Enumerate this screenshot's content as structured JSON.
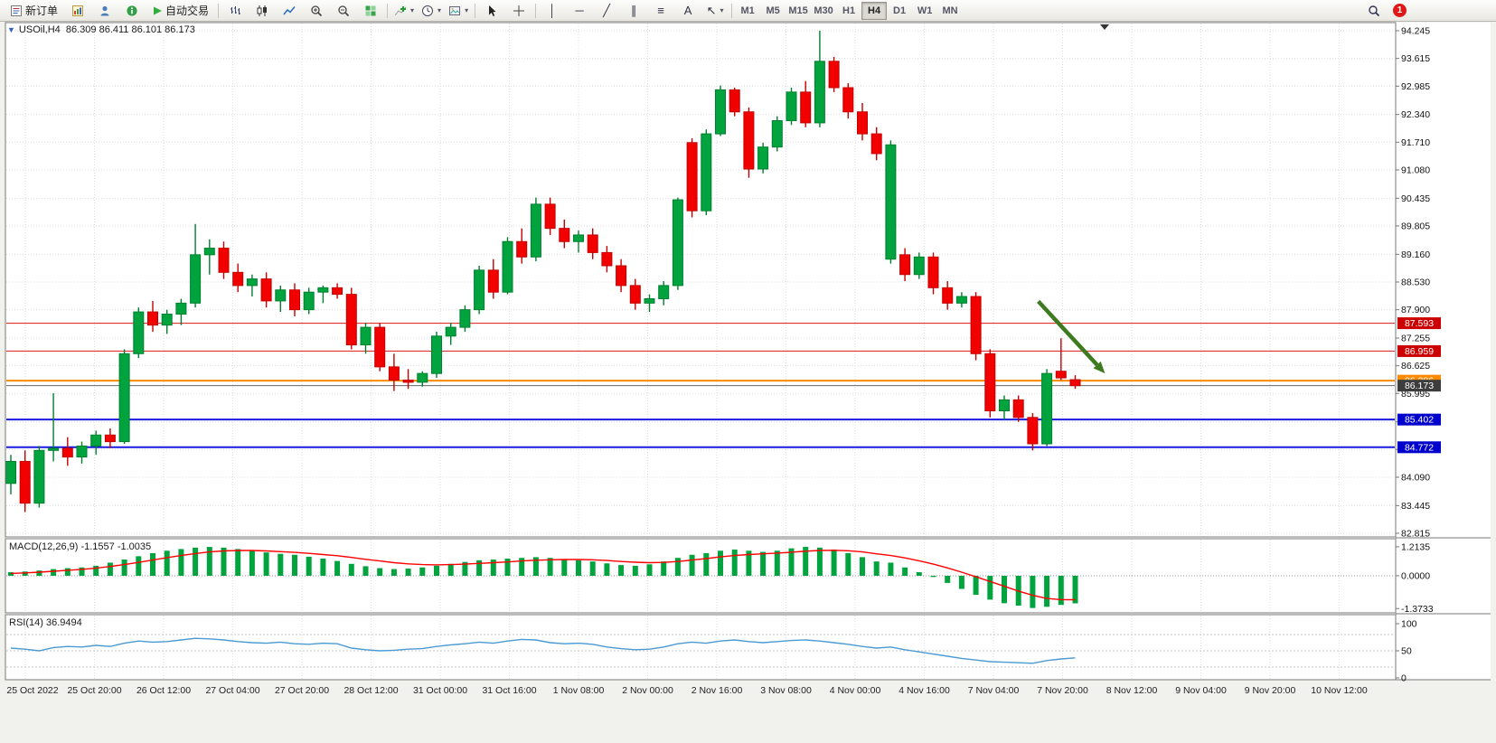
{
  "toolbar": {
    "new_order_label": "新订单",
    "autotrade_label": "自动交易",
    "timeframes": [
      "M1",
      "M5",
      "M15",
      "M30",
      "H1",
      "H4",
      "D1",
      "W1",
      "MN"
    ],
    "active_timeframe": "H4",
    "notification_count": "1",
    "caret_glyph": "▾",
    "tool_glyphs": [
      "│",
      "─",
      "╱",
      "∥",
      "≡",
      "A",
      "↖"
    ]
  },
  "chart": {
    "collapse_glyph": "▼",
    "title_symbol": "USOil,H4",
    "title_ohlc": "86.309 86.411 86.101 86.173"
  },
  "chart_data": {
    "type": "candlestick",
    "symbol": "USOil",
    "period": "H4",
    "last_ohlc": {
      "open": 86.309,
      "high": 86.411,
      "low": 86.101,
      "close": 86.173
    },
    "price_axis_ticks": [
      "94.245",
      "93.615",
      "92.985",
      "92.340",
      "91.710",
      "91.080",
      "90.435",
      "89.805",
      "89.160",
      "88.530",
      "87.900",
      "87.255",
      "86.625",
      "85.995",
      "85.350",
      "84.720",
      "84.090",
      "83.445",
      "82.815"
    ],
    "time_axis_labels": [
      "25 Oct 2022",
      "25 Oct 20:00",
      "26 Oct 12:00",
      "27 Oct 04:00",
      "27 Oct 20:00",
      "28 Oct 12:00",
      "31 Oct 00:00",
      "31 Oct 16:00",
      "1 Nov 08:00",
      "2 Nov 00:00",
      "2 Nov 16:00",
      "3 Nov 08:00",
      "4 Nov 00:00",
      "4 Nov 16:00",
      "7 Nov 04:00",
      "7 Nov 20:00",
      "8 Nov 12:00",
      "9 Nov 04:00",
      "9 Nov 20:00",
      "10 Nov 12:00"
    ],
    "hlines": [
      {
        "price": 87.593,
        "label": "87.593",
        "line_color": "#e01616",
        "badge_color": "#cc0000",
        "width": 1
      },
      {
        "price": 86.959,
        "label": "86.959",
        "line_color": "#e01616",
        "badge_color": "#cc0000",
        "width": 1
      },
      {
        "price": 86.286,
        "label": "86.286",
        "line_color": "#ff8a00",
        "badge_color": "#ff8a00",
        "width": 2
      },
      {
        "price": 85.402,
        "label": "85.402",
        "line_color": "#1a1ae0",
        "badge_color": "#0000cc",
        "width": 2
      },
      {
        "price": 84.772,
        "label": "84.772",
        "line_color": "#1a1ae0",
        "badge_color": "#0000cc",
        "width": 2
      }
    ],
    "bid_line": {
      "price": 86.173,
      "label": "86.173",
      "line_color": "#666666",
      "badge_color": "#3d3d3d",
      "width": 1
    },
    "candles": [
      [
        83.95,
        84.6,
        83.7,
        84.45
      ],
      [
        84.45,
        84.7,
        83.3,
        83.5
      ],
      [
        83.5,
        84.8,
        83.4,
        84.7
      ],
      [
        84.7,
        86.0,
        84.45,
        84.75
      ],
      [
        84.75,
        85.0,
        84.35,
        84.55
      ],
      [
        84.55,
        84.9,
        84.4,
        84.8
      ],
      [
        84.8,
        85.15,
        84.6,
        85.05
      ],
      [
        85.05,
        85.2,
        84.75,
        84.9
      ],
      [
        84.9,
        87.0,
        84.85,
        86.9
      ],
      [
        86.9,
        87.95,
        86.8,
        87.85
      ],
      [
        87.85,
        88.1,
        87.4,
        87.55
      ],
      [
        87.55,
        87.9,
        87.35,
        87.8
      ],
      [
        87.8,
        88.15,
        87.55,
        88.05
      ],
      [
        88.05,
        89.85,
        87.95,
        89.15
      ],
      [
        89.15,
        89.5,
        88.7,
        89.3
      ],
      [
        89.3,
        89.45,
        88.6,
        88.75
      ],
      [
        88.75,
        88.95,
        88.3,
        88.45
      ],
      [
        88.45,
        88.7,
        88.2,
        88.6
      ],
      [
        88.6,
        88.75,
        87.95,
        88.1
      ],
      [
        88.1,
        88.45,
        87.85,
        88.35
      ],
      [
        88.35,
        88.5,
        87.75,
        87.9
      ],
      [
        87.9,
        88.4,
        87.8,
        88.3
      ],
      [
        88.3,
        88.45,
        88.05,
        88.4
      ],
      [
        88.4,
        88.5,
        88.15,
        88.25
      ],
      [
        88.25,
        88.4,
        87.0,
        87.1
      ],
      [
        87.1,
        87.6,
        86.9,
        87.5
      ],
      [
        87.5,
        87.6,
        86.5,
        86.6
      ],
      [
        86.6,
        86.9,
        86.05,
        86.3
      ],
      [
        86.3,
        86.55,
        86.1,
        86.25
      ],
      [
        86.25,
        86.5,
        86.15,
        86.45
      ],
      [
        86.45,
        87.4,
        86.35,
        87.3
      ],
      [
        87.3,
        87.6,
        87.1,
        87.5
      ],
      [
        87.5,
        88.0,
        87.4,
        87.9
      ],
      [
        87.9,
        88.9,
        87.8,
        88.8
      ],
      [
        88.8,
        89.05,
        88.15,
        88.3
      ],
      [
        88.3,
        89.55,
        88.25,
        89.45
      ],
      [
        89.45,
        89.75,
        88.95,
        89.1
      ],
      [
        89.1,
        90.45,
        89.0,
        90.3
      ],
      [
        90.3,
        90.45,
        89.6,
        89.75
      ],
      [
        89.75,
        89.95,
        89.3,
        89.45
      ],
      [
        89.45,
        89.7,
        89.2,
        89.6
      ],
      [
        89.6,
        89.75,
        89.05,
        89.2
      ],
      [
        89.2,
        89.35,
        88.75,
        88.9
      ],
      [
        88.9,
        89.05,
        88.3,
        88.45
      ],
      [
        88.45,
        88.6,
        87.9,
        88.05
      ],
      [
        88.05,
        88.25,
        87.85,
        88.15
      ],
      [
        88.15,
        88.55,
        88.0,
        88.45
      ],
      [
        88.45,
        90.45,
        88.35,
        90.4
      ],
      [
        91.7,
        91.8,
        90.0,
        90.15
      ],
      [
        90.15,
        92.0,
        90.05,
        91.9
      ],
      [
        91.9,
        93.0,
        91.85,
        92.9
      ],
      [
        92.9,
        92.95,
        92.3,
        92.4
      ],
      [
        92.4,
        92.5,
        90.9,
        91.1
      ],
      [
        91.1,
        91.7,
        91.0,
        91.6
      ],
      [
        91.6,
        92.3,
        91.5,
        92.2
      ],
      [
        92.2,
        92.95,
        92.1,
        92.85
      ],
      [
        92.85,
        93.1,
        92.05,
        92.15
      ],
      [
        92.15,
        94.245,
        92.05,
        93.55
      ],
      [
        93.55,
        93.65,
        92.85,
        92.95
      ],
      [
        92.95,
        93.05,
        92.25,
        92.4
      ],
      [
        92.4,
        92.6,
        91.75,
        91.9
      ],
      [
        91.9,
        92.05,
        91.3,
        91.45
      ],
      [
        89.05,
        91.75,
        88.95,
        91.65
      ],
      [
        89.15,
        89.3,
        88.55,
        88.7
      ],
      [
        88.7,
        89.2,
        88.6,
        89.1
      ],
      [
        89.1,
        89.2,
        88.25,
        88.4
      ],
      [
        88.4,
        88.55,
        87.9,
        88.05
      ],
      [
        88.05,
        88.3,
        87.95,
        88.2
      ],
      [
        88.2,
        88.3,
        86.75,
        86.9
      ],
      [
        86.9,
        87.0,
        85.45,
        85.6
      ],
      [
        85.6,
        85.95,
        85.4,
        85.85
      ],
      [
        85.85,
        85.95,
        85.35,
        85.45
      ],
      [
        85.45,
        85.55,
        84.7,
        84.85
      ],
      [
        84.85,
        86.55,
        84.8,
        86.45
      ],
      [
        86.5,
        87.25,
        86.3,
        86.35
      ],
      [
        86.309,
        86.411,
        86.101,
        86.173
      ]
    ],
    "colors": {
      "up": "#00a33e",
      "up_stroke": "#00802f",
      "down": "#f20000",
      "down_stroke": "#c40000",
      "background": "#ffffff",
      "grid": "#dedede"
    },
    "annotation_arrow": {
      "from_bar": 72.4,
      "from_price": 88.09,
      "to_bar": 77.1,
      "to_price": 86.45,
      "color": "#3e7a1f"
    },
    "macd": {
      "label_text": "MACD(12,26,9) -1.1557 -1.0035",
      "axis_ticks": [
        "1.2135",
        "0.0000",
        "-1.3733"
      ],
      "axis_values": [
        1.2135,
        0,
        -1.3733
      ],
      "hist_color": "#00a33e",
      "signal_color": "#ff0000",
      "hist": [
        0.15,
        0.18,
        0.22,
        0.28,
        0.32,
        0.35,
        0.42,
        0.55,
        0.68,
        0.82,
        0.95,
        1.05,
        1.12,
        1.18,
        1.21,
        1.18,
        1.12,
        1.05,
        0.98,
        0.92,
        0.88,
        0.8,
        0.72,
        0.62,
        0.5,
        0.4,
        0.32,
        0.28,
        0.3,
        0.35,
        0.42,
        0.5,
        0.58,
        0.65,
        0.68,
        0.72,
        0.75,
        0.78,
        0.75,
        0.7,
        0.65,
        0.6,
        0.52,
        0.45,
        0.42,
        0.48,
        0.6,
        0.75,
        0.88,
        0.95,
        1.05,
        1.1,
        1.05,
        1.0,
        1.05,
        1.15,
        1.21,
        1.18,
        1.1,
        0.95,
        0.78,
        0.6,
        0.55,
        0.35,
        0.15,
        -0.05,
        -0.3,
        -0.55,
        -0.8,
        -1.0,
        -1.15,
        -1.25,
        -1.35,
        -1.3,
        -1.22,
        -1.1557
      ],
      "signal": [
        0.1,
        0.12,
        0.15,
        0.19,
        0.23,
        0.27,
        0.32,
        0.39,
        0.47,
        0.56,
        0.66,
        0.76,
        0.85,
        0.93,
        1.0,
        1.04,
        1.06,
        1.06,
        1.04,
        1.01,
        0.98,
        0.94,
        0.89,
        0.84,
        0.77,
        0.69,
        0.62,
        0.55,
        0.5,
        0.47,
        0.46,
        0.47,
        0.49,
        0.52,
        0.55,
        0.58,
        0.62,
        0.65,
        0.67,
        0.68,
        0.68,
        0.67,
        0.64,
        0.6,
        0.57,
        0.55,
        0.56,
        0.6,
        0.66,
        0.72,
        0.79,
        0.85,
        0.89,
        0.92,
        0.95,
        0.99,
        1.03,
        1.06,
        1.07,
        1.05,
        1.0,
        0.92,
        0.85,
        0.75,
        0.63,
        0.49,
        0.33,
        0.15,
        -0.04,
        -0.24,
        -0.44,
        -0.64,
        -0.82,
        -0.95,
        -1.0,
        -1.0035
      ]
    },
    "rsi": {
      "label_text": "RSI(14) 36.9494",
      "axis_ticks": [
        "100",
        "50",
        "0"
      ],
      "axis_values": [
        100,
        50,
        0
      ],
      "levels": [
        80,
        50,
        20
      ],
      "line_color": "#4a9bd4",
      "values": [
        55,
        53,
        50,
        56,
        58,
        57,
        60,
        58,
        64,
        68,
        66,
        67,
        70,
        73,
        72,
        70,
        67,
        65,
        64,
        66,
        63,
        62,
        64,
        63,
        55,
        52,
        50,
        51,
        53,
        54,
        58,
        61,
        63,
        66,
        64,
        68,
        71,
        70,
        65,
        63,
        64,
        62,
        57,
        54,
        52,
        53,
        57,
        63,
        66,
        64,
        68,
        70,
        67,
        65,
        67,
        69,
        70,
        68,
        65,
        62,
        58,
        55,
        57,
        52,
        48,
        44,
        40,
        36,
        33,
        30,
        29,
        28,
        27,
        32,
        35,
        36.9494
      ]
    }
  }
}
